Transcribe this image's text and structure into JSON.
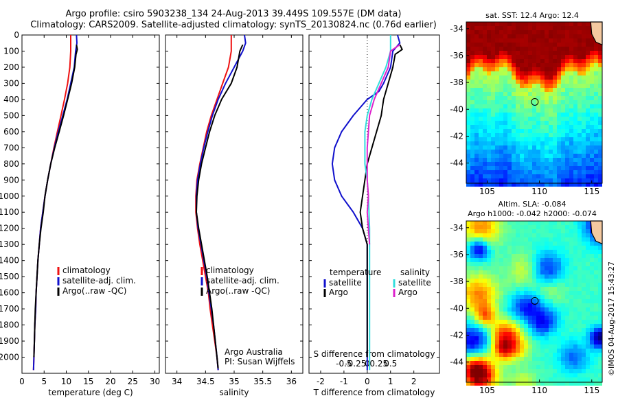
{
  "header": {
    "title_line1": "Argo profile: csiro 5903238_134 24-Aug-2013 39.449S 109.557E (DM data)",
    "title_line2": "Climatology: CARS2009. Satellite-adjusted climatology: synTS_20130824.nc (0.76d earlier)"
  },
  "credit": "©IMOS 04-Aug-2017 15:43:27",
  "colors": {
    "climatology": "#ee1111",
    "satellite": "#1010cc",
    "argo": "#000000",
    "salinity_satellite": "#33dddd",
    "salinity_argo": "#dd22cc"
  },
  "chart_data": [
    {
      "type": "line",
      "id": "temperature",
      "xlabel": "temperature (deg C)",
      "ylabel": "",
      "xlim": [
        0,
        31
      ],
      "ylim": [
        2100,
        0
      ],
      "xticks": [
        0,
        5,
        10,
        15,
        20,
        25,
        30
      ],
      "yticks": [
        0,
        100,
        200,
        300,
        400,
        500,
        600,
        700,
        800,
        900,
        1000,
        1100,
        1200,
        1300,
        1400,
        1500,
        1600,
        1700,
        1800,
        1900,
        2000
      ],
      "legend": {
        "placement": "lower-right",
        "entries": [
          "climatology",
          "satellite-adj. clim.",
          "Argo(..raw -QC)"
        ]
      },
      "series": [
        {
          "name": "climatology",
          "color": "#ee1111",
          "points": [
            [
              11.0,
              0
            ],
            [
              11.0,
              100
            ],
            [
              10.8,
              200
            ],
            [
              10.3,
              300
            ],
            [
              9.6,
              400
            ],
            [
              8.8,
              500
            ],
            [
              8.0,
              600
            ],
            [
              7.2,
              700
            ],
            [
              6.5,
              800
            ],
            [
              5.8,
              900
            ],
            [
              5.2,
              1000
            ],
            [
              4.7,
              1100
            ],
            [
              4.2,
              1200
            ],
            [
              3.9,
              1300
            ],
            [
              3.6,
              1400
            ],
            [
              3.4,
              1500
            ],
            [
              3.2,
              1600
            ],
            [
              3.1,
              1700
            ],
            [
              2.9,
              1800
            ],
            [
              2.8,
              1900
            ],
            [
              2.7,
              2000
            ],
            [
              2.6,
              2080
            ]
          ]
        },
        {
          "name": "satellite-adj. clim.",
          "color": "#1010cc",
          "points": [
            [
              12.3,
              0
            ],
            [
              12.4,
              50
            ],
            [
              12.1,
              100
            ],
            [
              11.8,
              200
            ],
            [
              11.0,
              300
            ],
            [
              10.2,
              400
            ],
            [
              9.2,
              500
            ],
            [
              8.2,
              600
            ],
            [
              7.3,
              700
            ],
            [
              6.5,
              800
            ],
            [
              5.8,
              900
            ],
            [
              5.2,
              1000
            ],
            [
              4.7,
              1100
            ],
            [
              4.2,
              1200
            ],
            [
              3.9,
              1300
            ],
            [
              3.6,
              1400
            ],
            [
              3.4,
              1500
            ],
            [
              3.2,
              1600
            ],
            [
              3.1,
              1700
            ],
            [
              2.9,
              1800
            ],
            [
              2.8,
              1900
            ],
            [
              2.7,
              2000
            ],
            [
              2.6,
              2080
            ]
          ]
        },
        {
          "name": "Argo(..raw -QC)",
          "color": "#000000",
          "points": [
            [
              12.3,
              60
            ],
            [
              12.5,
              90
            ],
            [
              12.2,
              120
            ],
            [
              11.9,
              200
            ],
            [
              11.2,
              300
            ],
            [
              10.3,
              400
            ],
            [
              9.4,
              500
            ],
            [
              8.4,
              600
            ],
            [
              7.4,
              700
            ],
            [
              6.5,
              800
            ],
            [
              5.8,
              900
            ],
            [
              5.2,
              1000
            ],
            [
              4.8,
              1100
            ],
            [
              4.3,
              1200
            ],
            [
              3.9,
              1300
            ],
            [
              3.6,
              1400
            ],
            [
              3.4,
              1500
            ],
            [
              3.2,
              1600
            ],
            [
              3.0,
              1700
            ],
            [
              2.9,
              1800
            ],
            [
              2.8,
              1900
            ],
            [
              2.7,
              2000
            ]
          ]
        }
      ]
    },
    {
      "type": "line",
      "id": "salinity",
      "xlabel": "salinity",
      "ylabel": "",
      "xlim": [
        33.8,
        36.2
      ],
      "ylim": [
        2100,
        0
      ],
      "xticks": [
        34,
        34.5,
        35,
        35.5,
        36
      ],
      "xticklabels": [
        "34",
        "34.5",
        "35",
        "35.5",
        "36"
      ],
      "legend": {
        "placement": "lower-right",
        "entries": [
          "climatology",
          "satellite-adj. clim.",
          "Argo(..raw -QC)"
        ]
      },
      "annotations": [
        "Argo Australia",
        "PI: Susan Wijffels"
      ],
      "series": [
        {
          "name": "climatology",
          "color": "#ee1111",
          "points": [
            [
              34.95,
              0
            ],
            [
              34.95,
              100
            ],
            [
              34.9,
              200
            ],
            [
              34.8,
              300
            ],
            [
              34.7,
              400
            ],
            [
              34.6,
              500
            ],
            [
              34.52,
              600
            ],
            [
              34.46,
              700
            ],
            [
              34.4,
              800
            ],
            [
              34.35,
              900
            ],
            [
              34.33,
              1000
            ],
            [
              34.33,
              1100
            ],
            [
              34.36,
              1200
            ],
            [
              34.4,
              1300
            ],
            [
              34.45,
              1400
            ],
            [
              34.5,
              1500
            ],
            [
              34.55,
              1600
            ],
            [
              34.58,
              1700
            ],
            [
              34.62,
              1800
            ],
            [
              34.66,
              1900
            ],
            [
              34.7,
              2000
            ],
            [
              34.72,
              2080
            ]
          ]
        },
        {
          "name": "satellite-adj. clim.",
          "color": "#1010cc",
          "points": [
            [
              35.18,
              0
            ],
            [
              35.2,
              50
            ],
            [
              35.15,
              100
            ],
            [
              35.0,
              200
            ],
            [
              34.85,
              300
            ],
            [
              34.72,
              400
            ],
            [
              34.62,
              500
            ],
            [
              34.54,
              600
            ],
            [
              34.47,
              700
            ],
            [
              34.41,
              800
            ],
            [
              34.36,
              900
            ],
            [
              34.34,
              1000
            ],
            [
              34.34,
              1100
            ],
            [
              34.37,
              1200
            ],
            [
              34.42,
              1300
            ],
            [
              34.47,
              1400
            ],
            [
              34.52,
              1500
            ],
            [
              34.56,
              1600
            ],
            [
              34.6,
              1700
            ],
            [
              34.64,
              1800
            ],
            [
              34.67,
              1900
            ],
            [
              34.7,
              2000
            ],
            [
              34.72,
              2080
            ]
          ]
        },
        {
          "name": "Argo(..raw -QC)",
          "color": "#000000",
          "points": [
            [
              35.15,
              60
            ],
            [
              35.1,
              100
            ],
            [
              35.05,
              200
            ],
            [
              34.95,
              300
            ],
            [
              34.78,
              400
            ],
            [
              34.66,
              500
            ],
            [
              34.57,
              600
            ],
            [
              34.5,
              700
            ],
            [
              34.43,
              800
            ],
            [
              34.38,
              900
            ],
            [
              34.35,
              1000
            ],
            [
              34.34,
              1100
            ],
            [
              34.38,
              1200
            ],
            [
              34.43,
              1300
            ],
            [
              34.48,
              1400
            ],
            [
              34.53,
              1500
            ],
            [
              34.57,
              1600
            ],
            [
              34.61,
              1700
            ],
            [
              34.64,
              1800
            ],
            [
              34.67,
              1900
            ],
            [
              34.7,
              2000
            ],
            [
              34.72,
              2070
            ]
          ]
        }
      ]
    },
    {
      "type": "line",
      "id": "difference",
      "xlabel": "T difference from climatology",
      "xlabel2": "S difference from climatology",
      "xlim": [
        -2.5,
        3.1
      ],
      "ylim": [
        2100,
        0
      ],
      "xticks": [
        -2,
        -1,
        0,
        1,
        2
      ],
      "xticks2": [
        -0.5,
        -0.25,
        0,
        0.25,
        0.5
      ],
      "xticks2_labels": [
        "-0.5",
        "-0.25",
        "0",
        "0.25",
        "0.5"
      ],
      "legend": {
        "placement": "lower-center",
        "temperature_title": "temperature",
        "salinity_title": "salinity",
        "entries": [
          "satellite",
          "Argo",
          "satellite",
          "Argo"
        ]
      },
      "series": [
        {
          "name": "satellite",
          "group": "temperature",
          "color": "#1010cc",
          "points": [
            [
              1.3,
              0
            ],
            [
              1.4,
              50
            ],
            [
              1.1,
              100
            ],
            [
              1.0,
              200
            ],
            [
              0.7,
              300
            ],
            [
              0.5,
              350
            ],
            [
              0.0,
              400
            ],
            [
              -0.6,
              500
            ],
            [
              -1.1,
              600
            ],
            [
              -1.4,
              700
            ],
            [
              -1.5,
              800
            ],
            [
              -1.4,
              900
            ],
            [
              -1.1,
              1000
            ],
            [
              -0.6,
              1100
            ],
            [
              -0.2,
              1200
            ],
            [
              0.0,
              1300
            ],
            [
              0.0,
              1400
            ],
            [
              0.0,
              1500
            ],
            [
              0.0,
              2000
            ],
            [
              0.0,
              2080
            ]
          ]
        },
        {
          "name": "Argo",
          "group": "temperature",
          "color": "#000000",
          "points": [
            [
              1.4,
              60
            ],
            [
              1.5,
              90
            ],
            [
              1.2,
              120
            ],
            [
              1.1,
              200
            ],
            [
              0.9,
              300
            ],
            [
              0.7,
              400
            ],
            [
              0.6,
              500
            ],
            [
              0.4,
              600
            ],
            [
              0.2,
              700
            ],
            [
              0.0,
              800
            ],
            [
              -0.1,
              900
            ],
            [
              -0.2,
              1000
            ],
            [
              -0.3,
              1100
            ],
            [
              -0.2,
              1200
            ],
            [
              0.0,
              1300
            ],
            [
              0.0,
              1400
            ],
            [
              0.0,
              1500
            ],
            [
              0.0,
              2000
            ]
          ]
        },
        {
          "name": "satellite",
          "group": "salinity",
          "color": "#33dddd",
          "points": [
            [
              1.0,
              0
            ],
            [
              1.0,
              100
            ],
            [
              0.8,
              200
            ],
            [
              0.5,
              300
            ],
            [
              0.2,
              400
            ],
            [
              0.0,
              500
            ],
            [
              -0.1,
              600
            ],
            [
              -0.1,
              700
            ],
            [
              -0.1,
              800
            ],
            [
              0.0,
              900
            ],
            [
              0.05,
              1000
            ],
            [
              0.1,
              1200
            ],
            [
              0.1,
              1400
            ],
            [
              0.1,
              1600
            ],
            [
              0.1,
              1800
            ],
            [
              0.1,
              2000
            ],
            [
              0.1,
              2080
            ]
          ]
        },
        {
          "name": "Argo",
          "group": "salinity",
          "color": "#dd22cc",
          "points": [
            [
              1.4,
              60
            ],
            [
              1.0,
              100
            ],
            [
              0.9,
              200
            ],
            [
              0.6,
              300
            ],
            [
              0.3,
              400
            ],
            [
              0.1,
              500
            ],
            [
              0.05,
              600
            ],
            [
              0.0,
              700
            ],
            [
              0.0,
              800
            ],
            [
              0.0,
              900
            ],
            [
              0.05,
              1000
            ],
            [
              0.0,
              1100
            ],
            [
              0.05,
              1200
            ],
            [
              0.1,
              1300
            ]
          ]
        }
      ]
    },
    {
      "type": "heatmap",
      "id": "sst-map",
      "title": "sat. SST: 12.4  Argo: 12.4",
      "xlim": [
        103,
        116
      ],
      "ylim": [
        -45.5,
        -33.5
      ],
      "xticks": [
        105,
        110,
        115
      ],
      "yticks": [
        -34,
        -36,
        -38,
        -40,
        -42,
        -44
      ],
      "marker": {
        "lon": 109.557,
        "lat": -39.449
      }
    },
    {
      "type": "heatmap",
      "id": "sla-map",
      "title": "Altim. SLA: -0.084",
      "title2": "Argo h1000: -0.042  h2000: -0.074",
      "xlim": [
        103,
        116
      ],
      "ylim": [
        -45.5,
        -33.5
      ],
      "xticks": [
        105,
        110,
        115
      ],
      "yticks": [
        -34,
        -36,
        -38,
        -40,
        -42,
        -44
      ],
      "marker": {
        "lon": 109.557,
        "lat": -39.449
      }
    }
  ]
}
